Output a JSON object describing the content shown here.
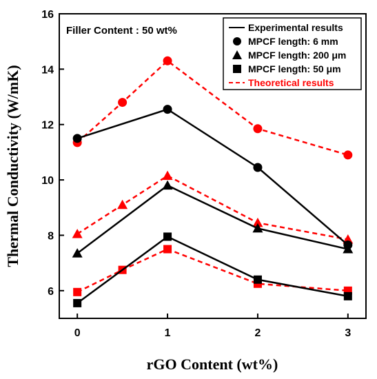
{
  "chart_data": {
    "type": "line",
    "xlabel": "rGO Content (wt%)",
    "ylabel": "Thermal Conductivity (W/mK)",
    "xlim": [
      -0.2,
      3.2
    ],
    "ylim": [
      5,
      16
    ],
    "xticks": [
      0,
      1,
      2,
      3
    ],
    "yticks": [
      6,
      8,
      10,
      12,
      14,
      16
    ],
    "grid": false,
    "legend_placement": "top-right",
    "annotation": "Filler Content : 50 wt%",
    "legend": {
      "experimental": "Experimental results",
      "theoretical": "Theoretical results",
      "markers": [
        {
          "marker": "circle",
          "label": "MPCF length: 6 mm"
        },
        {
          "marker": "triangle",
          "label": "MPCF length: 200 μm"
        },
        {
          "marker": "square",
          "label": "MPCF length: 50 μm"
        }
      ]
    },
    "series": [
      {
        "group": "6 mm",
        "kind": "experimental",
        "marker": "circle",
        "color": "#000000",
        "x": [
          0,
          1,
          2,
          3
        ],
        "y": [
          11.5,
          12.55,
          10.45,
          7.65
        ]
      },
      {
        "group": "6 mm",
        "kind": "theoretical",
        "marker": "circle",
        "color": "#ff0000",
        "x": [
          0,
          0.5,
          1,
          2,
          3
        ],
        "y": [
          11.35,
          12.8,
          14.3,
          11.85,
          10.9
        ]
      },
      {
        "group": "200 μm",
        "kind": "experimental",
        "marker": "triangle",
        "color": "#000000",
        "x": [
          0,
          1,
          2,
          3
        ],
        "y": [
          7.35,
          9.8,
          8.25,
          7.5
        ]
      },
      {
        "group": "200 μm",
        "kind": "theoretical",
        "marker": "triangle",
        "color": "#ff0000",
        "x": [
          0,
          0.5,
          1,
          2,
          3
        ],
        "y": [
          8.05,
          9.1,
          10.15,
          8.45,
          7.85
        ]
      },
      {
        "group": "50 μm",
        "kind": "experimental",
        "marker": "square",
        "color": "#000000",
        "x": [
          0,
          1,
          2,
          3
        ],
        "y": [
          5.55,
          7.95,
          6.4,
          5.8
        ]
      },
      {
        "group": "50 μm",
        "kind": "theoretical",
        "marker": "square",
        "color": "#ff0000",
        "x": [
          0,
          0.5,
          1,
          2,
          3
        ],
        "y": [
          5.95,
          6.75,
          7.5,
          6.25,
          6.0
        ]
      }
    ]
  }
}
